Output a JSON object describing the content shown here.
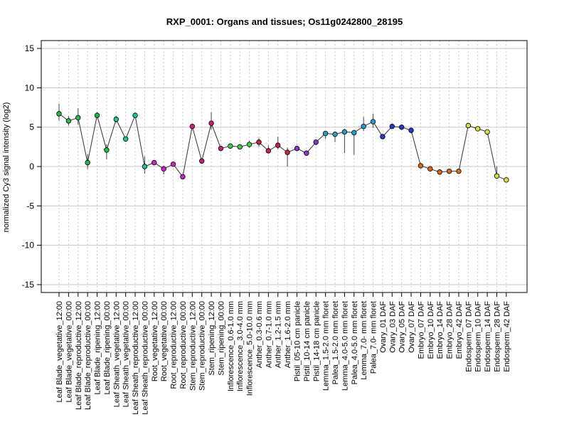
{
  "chart_data": {
    "type": "line",
    "title": "RXP_0001: Organs and tissues; Os11g0242800_28195",
    "xlabel": "",
    "ylabel": "normalized Cy3 signal intensity (log2)",
    "ylim": [
      -16,
      16
    ],
    "yticks": [
      -15,
      -10,
      -5,
      0,
      5,
      10,
      15
    ],
    "grid": true,
    "legend": "none",
    "categories": [
      "Leaf Blade_vegetative_12:00",
      "Leaf Blade_vegetative_00:00",
      "Leaf Blade_reproductive_12:00",
      "Leaf Blade_reproductive_00:00",
      "Leaf Blade_ripening_12:00",
      "Leaf Blade_ripening_00:00",
      "Leaf Sheath_vegetative_12:00",
      "Leaf Sheath_vegetative_00:00",
      "Leaf Sheath_reproductive_12:00",
      "Leaf Sheath_reproductive_00:00",
      "Root_vegetative_12:00",
      "Root_vegetative_00:00",
      "Root_reproductive_12:00",
      "Root_reproductive_00:00",
      "Stem_reproductive_12:00",
      "Stem_reproductive_00:00",
      "Stem_ripening_12:00",
      "Stem_ripening_00:00",
      "Inflorescence_0.6-1.0 mm",
      "Inflorescence_3.0-4.0 mm",
      "Inflorescence_5.0-10.0 mm",
      "Anther_0.3-0.6 mm",
      "Anther_0.7-1.0 mm",
      "Anther_1.2-1.5 mm",
      "Anther_1.6-2.0 mm",
      "Pistil_05-10 cm panicle",
      "Pistil_10-14 cm panicle",
      "Pistil_14-18 cm panicle",
      "Lemma_1.5-2.0 mm floret",
      "Palea_1.5-2.0 mm floret",
      "Lemma_4.0-5.0 mm floret",
      "Palea_4.0-5.0 mm floret",
      "Lemma_7.0- mm floret",
      "Palea_7.0- mm floret",
      "Ovary_01 DAF",
      "Ovary_03 DAF",
      "Ovary_05 DAF",
      "Ovary_07 DAF",
      "Embryo_07 DAF",
      "Embryo_10 DAF",
      "Embryo_14 DAF",
      "Embryo_28 DAF",
      "Embryo_42 DAF",
      "Endosperm_07 DAF",
      "Endosperm_10 DAF",
      "Endosperm_14 DAF",
      "Endosperm_28 DAF",
      "Endosperm_42 DAF"
    ],
    "series": [
      {
        "values": [
          6.7,
          5.8,
          6.2,
          0.5,
          6.5,
          2.1,
          6.0,
          3.5,
          6.5,
          0.0,
          0.5,
          -0.3,
          0.3,
          -1.3,
          5.1,
          0.7,
          5.5,
          2.3,
          2.6,
          2.5,
          2.8,
          3.1,
          2.0,
          2.7,
          1.8,
          2.3,
          1.7,
          3.1,
          4.2,
          4.1,
          4.4,
          4.3,
          5.1,
          5.7,
          3.8,
          5.1,
          5.0,
          4.6,
          0.1,
          -0.3,
          -0.7,
          -0.6,
          -0.6,
          5.2,
          4.8,
          4.4,
          -1.2,
          -1.7
        ],
        "err_low": [
          5.8,
          5.2,
          5.3,
          -0.3,
          6.2,
          0.9,
          5.6,
          3.4,
          6.2,
          -0.9,
          0.3,
          -1.0,
          0.1,
          -1.5,
          4.9,
          0.5,
          4.7,
          2.1,
          2.3,
          2.3,
          2.4,
          2.5,
          1.8,
          2.2,
          0.0,
          2.0,
          1.5,
          2.7,
          3.5,
          3.1,
          1.7,
          1.5,
          4.5,
          4.9,
          3.6,
          5.0,
          4.9,
          4.4,
          -0.1,
          -0.5,
          -0.9,
          -0.8,
          -0.8,
          5.0,
          4.6,
          4.0,
          -1.5,
          -1.9
        ],
        "err_high": [
          8.0,
          6.4,
          7.4,
          1.6,
          6.9,
          2.8,
          6.4,
          3.7,
          6.7,
          1.3,
          0.7,
          0.1,
          0.5,
          -1.1,
          5.3,
          0.9,
          6.9,
          2.5,
          2.9,
          2.7,
          3.3,
          3.6,
          2.7,
          3.8,
          2.4,
          2.5,
          1.9,
          3.3,
          4.4,
          4.3,
          4.8,
          4.6,
          6.3,
          6.7,
          4.0,
          5.3,
          5.2,
          4.8,
          0.3,
          -0.1,
          -0.5,
          -0.4,
          -0.4,
          5.4,
          5.0,
          4.6,
          0.0,
          -1.5
        ]
      }
    ],
    "colors": {
      "point_colors": [
        "#22bb44",
        "#22bb44",
        "#22bb44",
        "#22bb44",
        "#22bb44",
        "#22bb44",
        "#1fc49a",
        "#1fc49a",
        "#1fc49a",
        "#1fc49a",
        "#cc22cc",
        "#cc22cc",
        "#cc22cc",
        "#cc22cc",
        "#cc1f7a",
        "#cc1f7a",
        "#cc1f7a",
        "#cc1f7a",
        "#44cc44",
        "#44cc44",
        "#44cc44",
        "#cc2244",
        "#cc2244",
        "#cc2244",
        "#cc2244",
        "#8833cc",
        "#8833cc",
        "#8833cc",
        "#22a0cc",
        "#22a0cc",
        "#22a0cc",
        "#22a0cc",
        "#22a0cc",
        "#22a0cc",
        "#1f3acc",
        "#1f3acc",
        "#1f3acc",
        "#1f3acc",
        "#dd6a11",
        "#dd6a11",
        "#dd6a11",
        "#dd6a11",
        "#dd6a11",
        "#d4e03a",
        "#d4e03a",
        "#d4e03a",
        "#d4e03a",
        "#d4e03a"
      ],
      "line": "#333333",
      "error_bar": "#444444",
      "grid_h": "#c8c8c8",
      "grid_v": "#c8c8c8"
    }
  }
}
